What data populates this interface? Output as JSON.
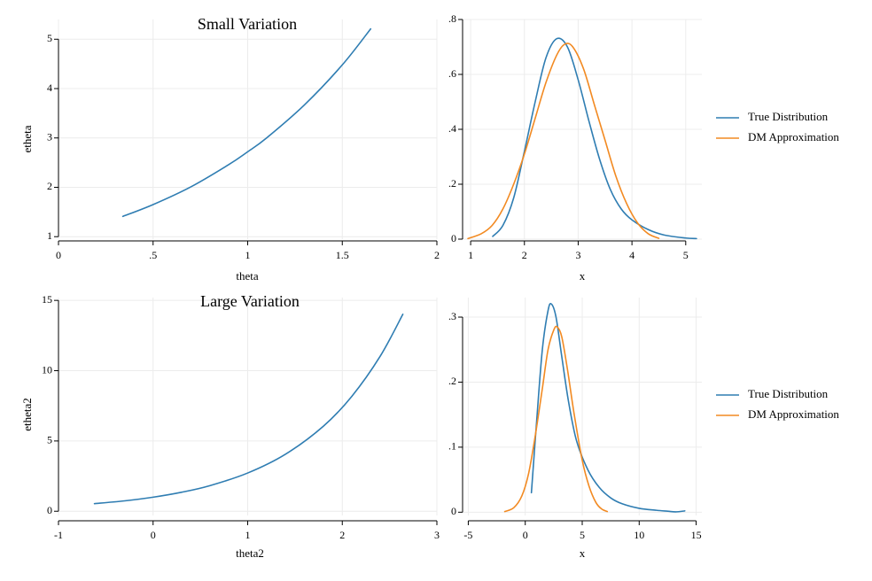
{
  "colors": {
    "series1": "#2f7db2",
    "series2": "#f28a22",
    "grid": "#ececec",
    "axis": "#000000"
  },
  "chart_data": [
    {
      "type": "line",
      "title": "Small Variation",
      "xlabel": "theta",
      "ylabel": "etheta",
      "xlim": [
        0,
        2
      ],
      "ylim": [
        0.95,
        5.4
      ],
      "xticks": [
        0,
        0.5,
        1,
        1.5,
        2
      ],
      "xtick_labels": [
        "0",
        ".5",
        "1",
        "1.5",
        "2"
      ],
      "yticks": [
        1,
        2,
        3,
        4,
        5
      ],
      "ytick_labels": [
        "1",
        "2",
        "3",
        "4",
        "5"
      ],
      "grid": true,
      "series": [
        {
          "x": [
            0.34,
            0.5,
            0.7,
            0.9,
            1.0,
            1.1,
            1.3,
            1.5,
            1.65
          ],
          "y": [
            1.41,
            1.65,
            2.01,
            2.46,
            2.72,
            3.0,
            3.67,
            4.48,
            5.21
          ]
        }
      ]
    },
    {
      "type": "line",
      "title": "",
      "xlabel": "x",
      "ylabel": "",
      "xlim": [
        0.85,
        5.3
      ],
      "ylim": [
        0,
        0.8
      ],
      "xticks": [
        1,
        2,
        3,
        4,
        5
      ],
      "xtick_labels": [
        "1",
        "2",
        "3",
        "4",
        "5"
      ],
      "yticks": [
        0,
        0.2,
        0.4,
        0.6,
        0.8
      ],
      "ytick_labels": [
        "0",
        ".2",
        ".4",
        ".6",
        ".8"
      ],
      "grid": true,
      "legend": "right",
      "series": [
        {
          "name": "True Distribution",
          "x": [
            1.41,
            1.6,
            1.8,
            2.0,
            2.2,
            2.4,
            2.6,
            2.8,
            3.0,
            3.2,
            3.4,
            3.6,
            3.8,
            4.0,
            4.3,
            4.6,
            5.0,
            5.2
          ],
          "y": [
            0.01,
            0.05,
            0.15,
            0.32,
            0.5,
            0.66,
            0.73,
            0.7,
            0.58,
            0.43,
            0.29,
            0.18,
            0.11,
            0.07,
            0.035,
            0.015,
            0.004,
            0.002
          ]
        },
        {
          "name": "DM Approximation",
          "x": [
            0.95,
            1.2,
            1.4,
            1.6,
            1.8,
            2.0,
            2.2,
            2.4,
            2.6,
            2.75,
            2.9,
            3.1,
            3.3,
            3.5,
            3.7,
            3.9,
            4.1,
            4.3,
            4.5
          ],
          "y": [
            0.002,
            0.02,
            0.05,
            0.11,
            0.2,
            0.31,
            0.44,
            0.57,
            0.67,
            0.71,
            0.7,
            0.62,
            0.49,
            0.36,
            0.23,
            0.13,
            0.06,
            0.02,
            0.003
          ]
        }
      ]
    },
    {
      "type": "line",
      "title": "Large Variation",
      "xlabel": "theta2",
      "ylabel": "etheta2",
      "xlim": [
        -1,
        3
      ],
      "ylim": [
        -0.3,
        15.2
      ],
      "xticks": [
        -1,
        0,
        1,
        2,
        3
      ],
      "xtick_labels": [
        "-1",
        "0",
        "1",
        "2",
        "3"
      ],
      "yticks": [
        0,
        5,
        10,
        15
      ],
      "ytick_labels": [
        "0",
        "5",
        "10",
        "15"
      ],
      "grid": true,
      "series": [
        {
          "x": [
            -0.62,
            -0.3,
            0.0,
            0.3,
            0.6,
            1.0,
            1.4,
            1.8,
            2.1,
            2.4,
            2.64
          ],
          "y": [
            0.54,
            0.74,
            1.0,
            1.35,
            1.82,
            2.72,
            4.06,
            6.05,
            8.17,
            11.02,
            14.01
          ]
        }
      ]
    },
    {
      "type": "line",
      "title": "",
      "xlabel": "x",
      "ylabel": "",
      "xlim": [
        -5.5,
        15.5
      ],
      "ylim": [
        -0.005,
        0.33
      ],
      "xticks": [
        -5,
        0,
        5,
        10,
        15
      ],
      "xtick_labels": [
        "-5",
        "0",
        "5",
        "10",
        "15"
      ],
      "yticks": [
        0,
        0.1,
        0.2,
        0.3
      ],
      "ytick_labels": [
        "0",
        ".1",
        ".2",
        ".3"
      ],
      "grid": true,
      "legend": "right",
      "series": [
        {
          "name": "True Distribution",
          "x": [
            0.54,
            1.0,
            1.5,
            2.0,
            2.3,
            2.7,
            3.2,
            3.8,
            4.5,
            5.5,
            6.5,
            7.5,
            8.5,
            10.0,
            11.5,
            12.5,
            13.2,
            14.0
          ],
          "y": [
            0.03,
            0.14,
            0.25,
            0.31,
            0.32,
            0.3,
            0.24,
            0.17,
            0.11,
            0.065,
            0.038,
            0.022,
            0.013,
            0.006,
            0.003,
            0.0015,
            0.0005,
            0.002
          ]
        },
        {
          "name": "DM Approximation",
          "x": [
            -1.8,
            -1.0,
            -0.3,
            0.3,
            0.9,
            1.5,
            2.0,
            2.5,
            2.8,
            3.2,
            3.7,
            4.3,
            5.0,
            5.6,
            6.2,
            6.7,
            7.2
          ],
          "y": [
            0.001,
            0.007,
            0.025,
            0.06,
            0.12,
            0.19,
            0.25,
            0.28,
            0.285,
            0.27,
            0.22,
            0.15,
            0.08,
            0.04,
            0.015,
            0.005,
            0.001
          ]
        }
      ]
    }
  ]
}
